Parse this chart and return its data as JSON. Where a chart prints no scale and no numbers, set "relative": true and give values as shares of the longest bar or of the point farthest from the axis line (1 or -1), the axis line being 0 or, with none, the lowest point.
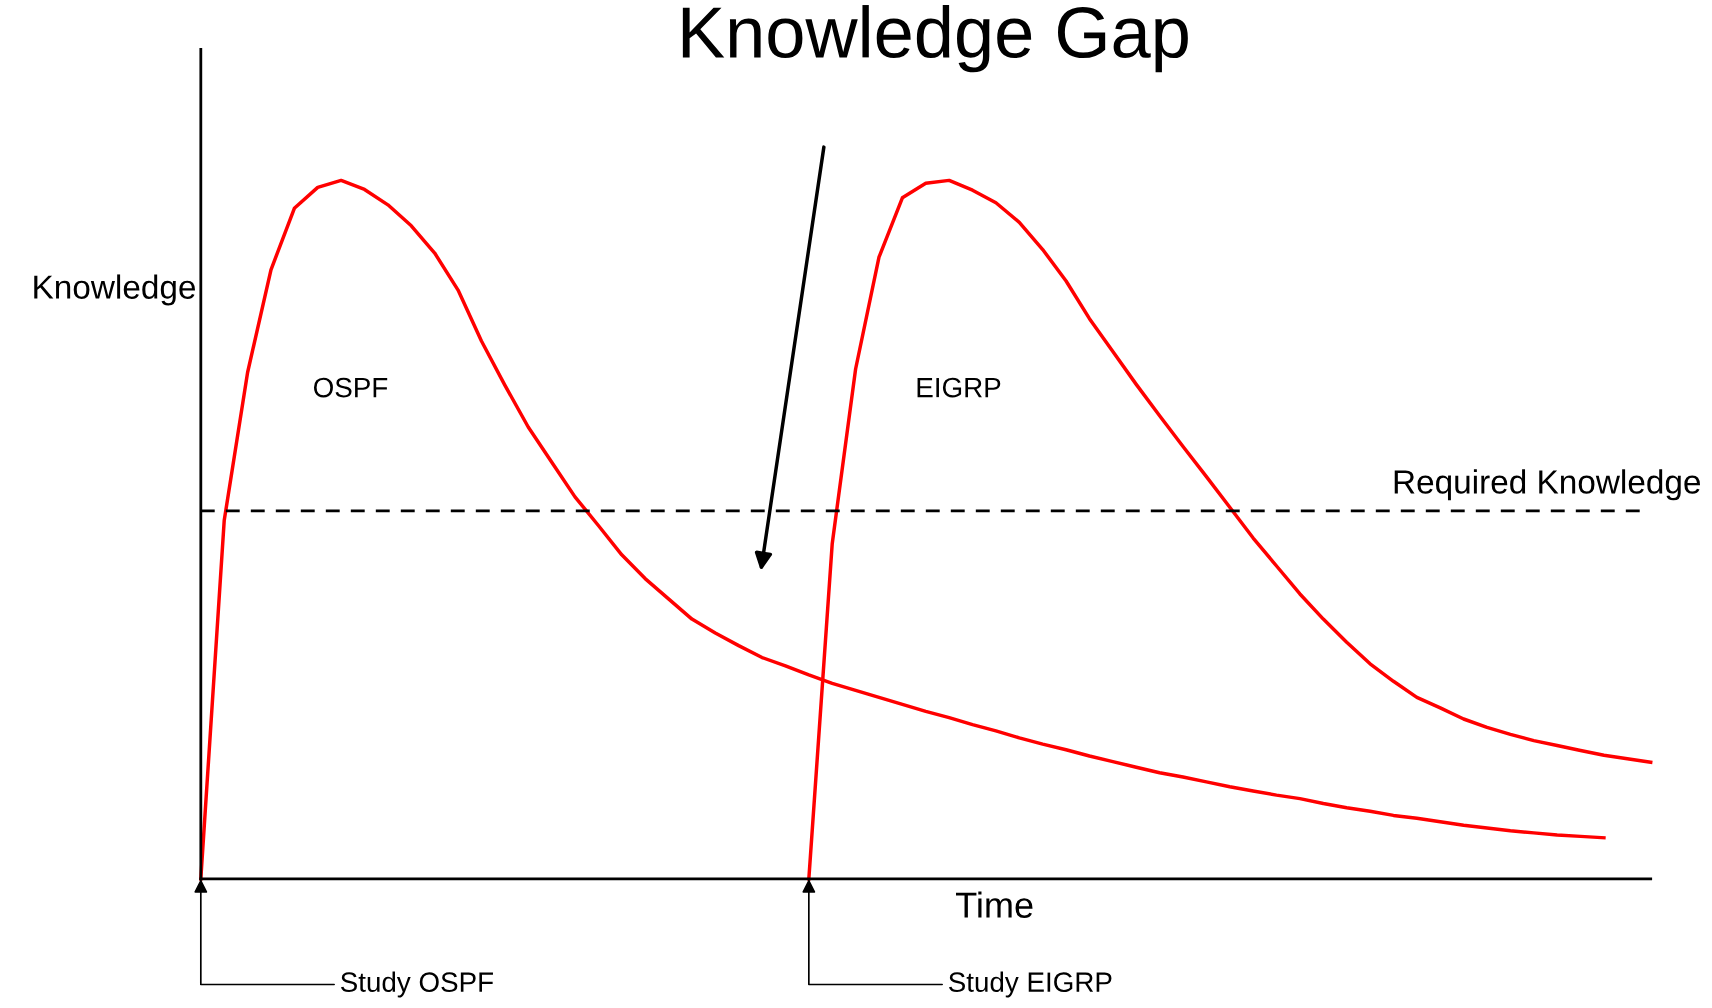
{
  "chart_data": {
    "type": "line",
    "title": "Knowledge Gap",
    "xlabel": "Time",
    "ylabel": "Knowledge",
    "relative": true,
    "legend": false,
    "marker": "none",
    "line_style": "solid",
    "categories": [
      null,
      null,
      null,
      null,
      null,
      null,
      null,
      null,
      null,
      null,
      null,
      null,
      null,
      null,
      null,
      null,
      null,
      null,
      null,
      null,
      null,
      null,
      null,
      null,
      null,
      null,
      null,
      null,
      null,
      null,
      null,
      null,
      null,
      null,
      null,
      null,
      null,
      null,
      null,
      null,
      null,
      null,
      null,
      null,
      null,
      null,
      null,
      null,
      null,
      null,
      null,
      null,
      null,
      null,
      null,
      null,
      null,
      null,
      null,
      null,
      null,
      null,
      null
    ],
    "series": [
      {
        "name": "OSPF",
        "color": "#ff0000",
        "values": [
          0,
          0.513,
          0.725,
          0.872,
          0.96,
          0.99,
          1.0,
          0.987,
          0.965,
          0.935,
          0.896,
          0.843,
          0.77,
          0.707,
          0.647,
          0.597,
          0.547,
          0.506,
          0.464,
          0.43,
          0.401,
          0.372,
          0.352,
          0.334,
          0.317,
          0.305,
          0.292,
          0.28,
          0.27,
          0.26,
          0.25,
          0.24,
          0.231,
          0.221,
          0.212,
          0.202,
          0.193,
          0.185,
          0.176,
          0.168,
          0.16,
          0.152,
          0.146,
          0.139,
          0.132,
          0.126,
          0.12,
          0.115,
          0.108,
          0.102,
          0.097,
          0.091,
          0.087,
          0.082,
          0.077,
          0.073,
          0.069,
          0.066,
          0.063,
          0.061,
          0.059,
          null,
          null
        ]
      },
      {
        "name": "EIGRP",
        "color": "#ff0000",
        "values": [
          null,
          null,
          null,
          null,
          null,
          null,
          null,
          null,
          null,
          null,
          null,
          null,
          null,
          null,
          null,
          null,
          null,
          null,
          null,
          null,
          null,
          null,
          null,
          null,
          null,
          null,
          0,
          0.48,
          0.73,
          0.89,
          0.975,
          0.996,
          1.0,
          0.986,
          0.968,
          0.94,
          0.901,
          0.856,
          0.802,
          0.755,
          0.708,
          0.663,
          0.619,
          0.576,
          0.532,
          0.488,
          0.448,
          0.408,
          0.372,
          0.339,
          0.308,
          0.283,
          0.26,
          0.245,
          0.229,
          0.217,
          0.207,
          0.198,
          0.191,
          0.184,
          0.177,
          0.172,
          0.167
        ]
      }
    ],
    "ref_lines": [
      {
        "axis": "y",
        "value": 0.527,
        "label": "Required Knowledge",
        "color": "#000000",
        "line_style": "dashed"
      }
    ],
    "annotations": [
      "Study OSPF",
      "Study EIGRP"
    ]
  }
}
